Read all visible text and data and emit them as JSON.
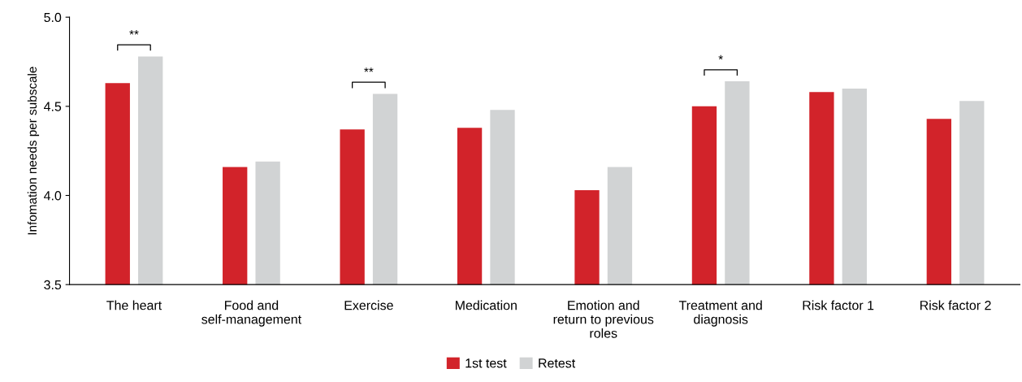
{
  "chart_data": {
    "type": "bar",
    "ylabel": "Infomation needs per subscale",
    "categories": [
      "The heart",
      "Food and\nself-management",
      "Exercise",
      "Medication",
      "Emotion and\nreturn to previous\nroles",
      "Treatment and\ndiagnosis",
      "Risk factor 1",
      "Risk factor 2"
    ],
    "series": [
      {
        "name": "1st test",
        "color": "#d2232a",
        "values": [
          4.63,
          4.16,
          4.37,
          4.38,
          4.03,
          4.5,
          4.58,
          4.43
        ]
      },
      {
        "name": "Retest",
        "color": "#d1d3d4",
        "values": [
          4.78,
          4.19,
          4.57,
          4.48,
          4.16,
          4.64,
          4.6,
          4.53
        ]
      }
    ],
    "ylim": [
      3.5,
      5.0
    ],
    "yticks": [
      {
        "value": 3.5,
        "label": "3.5"
      },
      {
        "value": 4.0,
        "label": "4.0"
      },
      {
        "value": 4.5,
        "label": "4.5"
      },
      {
        "value": 5.0,
        "label": "5.0"
      }
    ],
    "annotations": [
      {
        "text": "**",
        "x": "The heart",
        "y": 4.78
      },
      {
        "text": "**",
        "x": "Exercise",
        "y": 4.57
      },
      {
        "text": "*",
        "x": "Treatment and\ndiagnosis",
        "y": 4.64
      }
    ],
    "grid": false,
    "legend": "bottom"
  }
}
